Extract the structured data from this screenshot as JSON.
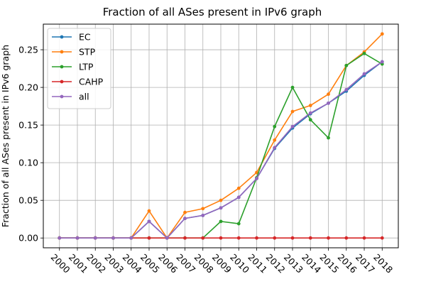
{
  "chart_data": {
    "type": "line",
    "title": "Fraction of all ASes present in IPv6 graph",
    "xlabel": "",
    "ylabel": "Fraction of all ASes present in IPv6 graph",
    "x": [
      "2000",
      "2001",
      "2002",
      "2003",
      "2004",
      "2005",
      "2006",
      "2007",
      "2008",
      "2009",
      "2010",
      "2011",
      "2012",
      "2013",
      "2014",
      "2015",
      "2016",
      "2017",
      "2018"
    ],
    "ylim": [
      -0.013,
      0.284
    ],
    "yticks": [
      "0.00",
      "0.05",
      "0.10",
      "0.15",
      "0.20",
      "0.25"
    ],
    "ytick_values": [
      0,
      0.05,
      0.1,
      0.15,
      0.2,
      0.25
    ],
    "grid": true,
    "legend_position": "top-left",
    "series": [
      {
        "name": "EC",
        "color": "#1f77b4",
        "values": [
          0,
          0,
          0,
          0,
          0,
          0.022,
          0,
          0.026,
          0.03,
          0.04,
          0.054,
          0.079,
          0.119,
          0.146,
          0.165,
          0.179,
          0.195,
          0.216,
          0.234
        ]
      },
      {
        "name": "STP",
        "color": "#ff7f0e",
        "values": [
          0,
          0,
          0,
          0,
          0,
          0.036,
          0,
          0.034,
          0.039,
          0.05,
          0.066,
          0.087,
          0.13,
          0.168,
          0.176,
          0.191,
          0.229,
          0.247,
          0.271
        ]
      },
      {
        "name": "LTP",
        "color": "#2ca02c",
        "values": [
          0,
          0,
          0,
          0,
          0,
          0,
          0,
          0,
          0,
          0.022,
          0.019,
          0.08,
          0.148,
          0.2,
          0.157,
          0.133,
          0.229,
          0.245,
          0.231
        ]
      },
      {
        "name": "CAHP",
        "color": "#d62728",
        "values": [
          0,
          0,
          0,
          0,
          0,
          0,
          0,
          0,
          0,
          0,
          0,
          0,
          0,
          0,
          0,
          0,
          0,
          0,
          0
        ]
      },
      {
        "name": "all",
        "color": "#9467bd",
        "values": [
          0,
          0,
          0,
          0,
          0,
          0.022,
          0,
          0.026,
          0.03,
          0.04,
          0.054,
          0.079,
          0.12,
          0.148,
          0.166,
          0.179,
          0.197,
          0.218,
          0.234
        ]
      }
    ]
  }
}
